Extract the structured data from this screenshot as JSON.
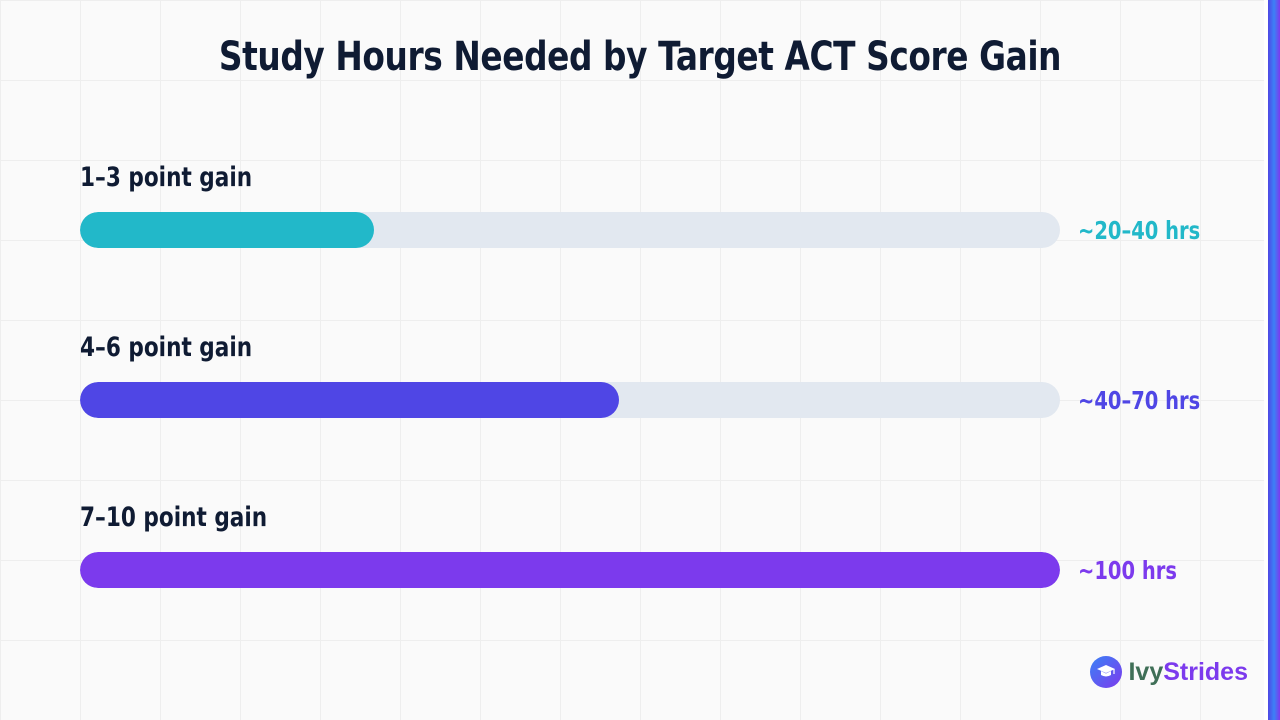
{
  "chart_data": {
    "type": "bar",
    "title": "Study Hours Needed by Target ACT Score Gain",
    "categories": [
      "1–3 point gain",
      "4–6 point gain",
      "7–10 point gain"
    ],
    "values": [
      30,
      55,
      100
    ],
    "value_labels": [
      "~20–40 hrs",
      "~40–70 hrs",
      "~100 hrs"
    ],
    "xlim": [
      0,
      100
    ],
    "orientation": "horizontal",
    "colors": [
      "#22b8c9",
      "#4f46e5",
      "#7c3aed"
    ],
    "track_color": "#e2e8f0",
    "grid": true
  },
  "brand": {
    "name_part1": "Ivy",
    "name_part2": "Strides",
    "icon": "graduation-cap-icon"
  }
}
